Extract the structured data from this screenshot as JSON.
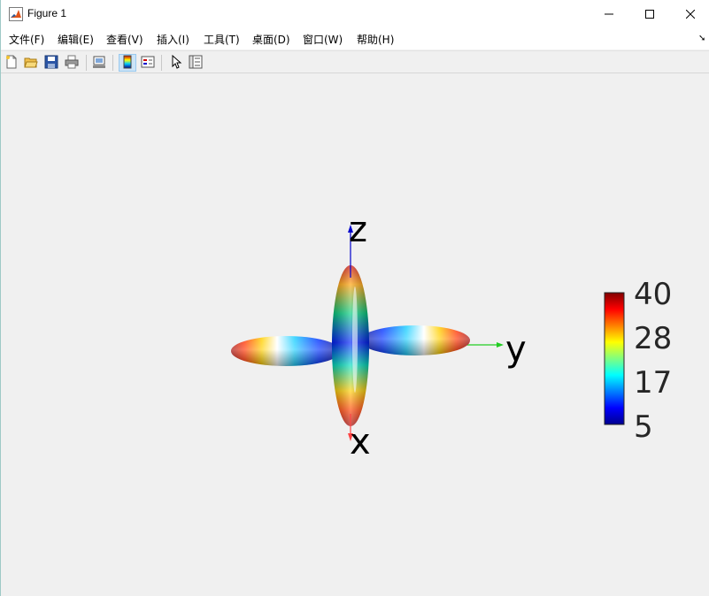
{
  "window": {
    "title": "Figure 1",
    "controls": {
      "minimize": "minimize-icon",
      "maximize": "maximize-icon",
      "close": "close-icon"
    }
  },
  "menu": {
    "items": [
      {
        "label": "文件(F)"
      },
      {
        "label": "编辑(E)"
      },
      {
        "label": "查看(V)"
      },
      {
        "label": "插入(I)"
      },
      {
        "label": "工具(T)"
      },
      {
        "label": "桌面(D)"
      },
      {
        "label": "窗口(W)"
      },
      {
        "label": "帮助(H)"
      }
    ],
    "overflow_icon": "chevron-icon"
  },
  "toolbar": {
    "buttons": [
      {
        "icon": "new-figure-icon"
      },
      {
        "icon": "open-file-icon"
      },
      {
        "icon": "save-icon"
      },
      {
        "icon": "print-icon"
      },
      {
        "icon": "link-plot-icon"
      },
      {
        "icon": "colorbar-icon",
        "active": true
      },
      {
        "icon": "legend-icon"
      },
      {
        "icon": "pointer-icon"
      },
      {
        "icon": "property-inspector-icon"
      }
    ]
  },
  "plot": {
    "axes_labels": {
      "x": "x",
      "y": "y",
      "z": "z"
    },
    "axis_colors": {
      "x": "#ff4444",
      "y": "#22cc22",
      "z": "#0000cc"
    },
    "colormap": "jet",
    "colorbar": {
      "ticks": [
        "40",
        "28",
        "17",
        "5"
      ],
      "min": 5,
      "max": 40
    }
  }
}
